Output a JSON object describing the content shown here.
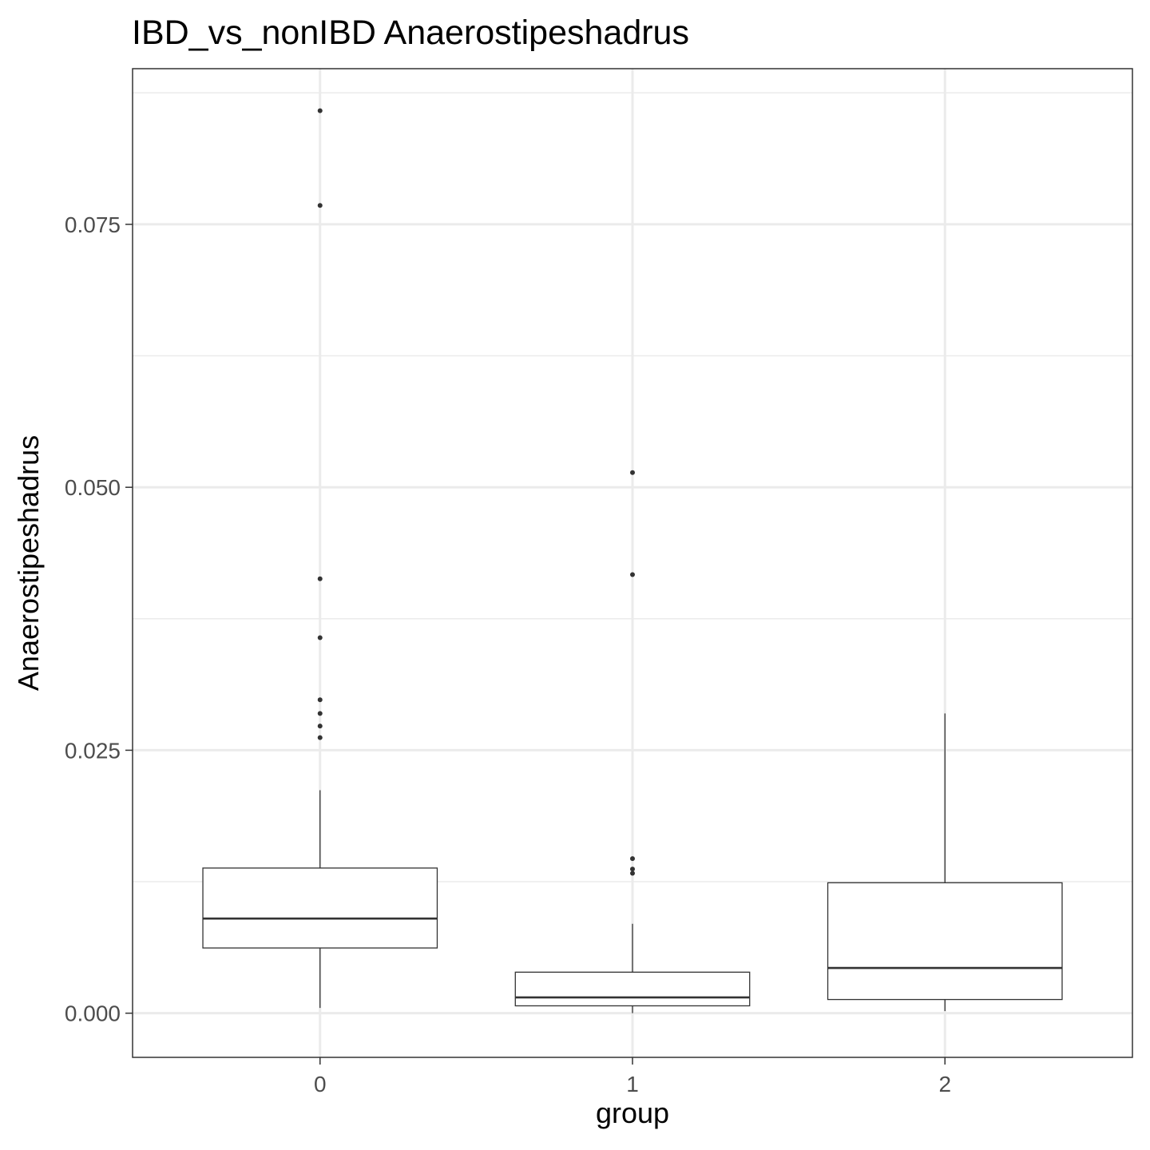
{
  "chart_data": {
    "type": "boxplot",
    "title": "IBD_vs_nonIBD Anaerostipeshadrus",
    "xlabel": "group",
    "ylabel": "Anaerostipeshadrus",
    "categories": [
      "0",
      "1",
      "2"
    ],
    "ylim": [
      -0.0042,
      0.0898
    ],
    "y_ticks": [
      0.0,
      0.025,
      0.05,
      0.075
    ],
    "y_tick_labels": [
      "0.000",
      "0.025",
      "0.050",
      "0.075"
    ],
    "grid": true,
    "boxes": [
      {
        "group": "0",
        "whisker_low": 0.0005,
        "q1": 0.0062,
        "median": 0.009,
        "q3": 0.0138,
        "whisker_high": 0.0212,
        "outliers": [
          0.0858,
          0.0768,
          0.0413,
          0.0357,
          0.0298,
          0.0285,
          0.0273,
          0.0262
        ]
      },
      {
        "group": "1",
        "whisker_low": 0.0,
        "q1": 0.0007,
        "median": 0.0015,
        "q3": 0.0039,
        "whisker_high": 0.0085,
        "outliers": [
          0.0514,
          0.0417,
          0.0147,
          0.0137,
          0.0133
        ]
      },
      {
        "group": "2",
        "whisker_low": 0.0002,
        "q1": 0.0013,
        "median": 0.0043,
        "q3": 0.0124,
        "whisker_high": 0.0285,
        "outliers": []
      }
    ]
  }
}
